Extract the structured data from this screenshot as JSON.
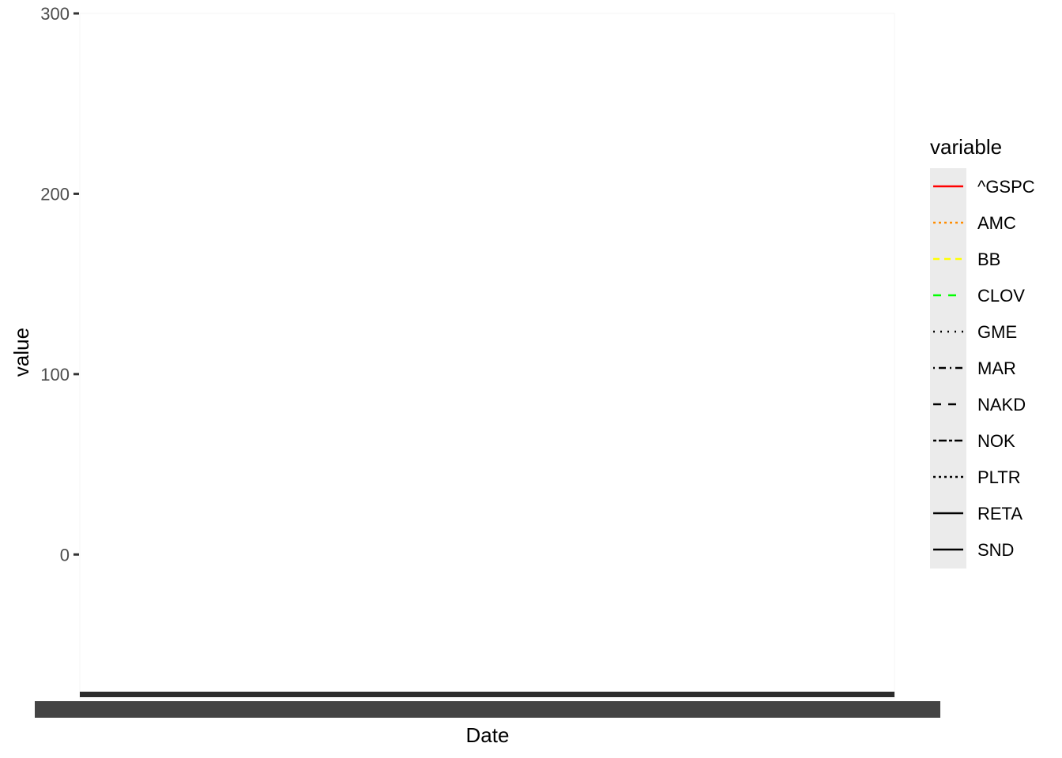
{
  "chart_data": {
    "type": "line",
    "title": "",
    "xlabel": "Date",
    "ylabel": "value",
    "ylim": [
      -80,
      300
    ],
    "y_ticks": [
      0,
      100,
      200,
      300
    ],
    "y_tick_labels": [
      "0",
      "100",
      "200",
      "300"
    ],
    "x_tick_labels_note": "overplotted",
    "grid": false,
    "legend": {
      "title": "variable",
      "placement": "right",
      "entries": [
        {
          "name": "^GSPC",
          "color": "#ff0000",
          "linetype": "solid"
        },
        {
          "name": "AMC",
          "color": "#ff8c00",
          "linetype": "dotted"
        },
        {
          "name": "BB",
          "color": "#ffff00",
          "linetype": "dashed"
        },
        {
          "name": "CLOV",
          "color": "#00ff00",
          "linetype": "longdash"
        },
        {
          "name": "GME",
          "color": "#000000",
          "linetype": "dotted-sparse"
        },
        {
          "name": "MAR",
          "color": "#000000",
          "linetype": "dotdash"
        },
        {
          "name": "NAKD",
          "color": "#000000",
          "linetype": "longdash"
        },
        {
          "name": "NOK",
          "color": "#000000",
          "linetype": "twodash"
        },
        {
          "name": "PLTR",
          "color": "#000000",
          "linetype": "dotted"
        },
        {
          "name": "RETA",
          "color": "#000000",
          "linetype": "solid"
        },
        {
          "name": "SND",
          "color": "#000000",
          "linetype": "solid"
        }
      ]
    },
    "series": [
      {
        "name": "^GSPC",
        "values": []
      },
      {
        "name": "AMC",
        "values": []
      },
      {
        "name": "BB",
        "values": []
      },
      {
        "name": "CLOV",
        "values": []
      },
      {
        "name": "GME",
        "values": []
      },
      {
        "name": "MAR",
        "values": []
      },
      {
        "name": "NAKD",
        "values": []
      },
      {
        "name": "NOK",
        "values": []
      },
      {
        "name": "PLTR",
        "values": []
      },
      {
        "name": "RETA",
        "values": []
      },
      {
        "name": "SND",
        "values": []
      }
    ]
  }
}
